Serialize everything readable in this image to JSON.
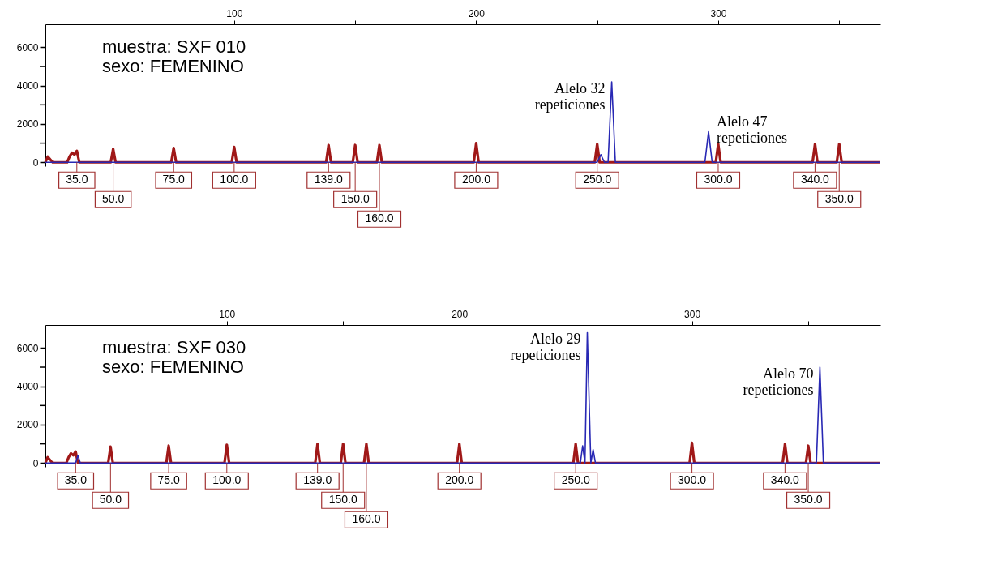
{
  "chart_data": [
    {
      "type": "line",
      "xlim": [
        22,
        367
      ],
      "xticks": [
        100,
        {
          "value": 150,
          "label": null
        },
        200,
        {
          "value": 250,
          "label": null
        },
        300,
        {
          "value": 350,
          "label": null
        }
      ],
      "ylim": [
        -200,
        7200
      ],
      "yticks": [
        0,
        {
          "value": 1000,
          "label": null
        },
        2000,
        {
          "value": 3000,
          "label": null
        },
        4000,
        {
          "value": 5000,
          "label": null
        },
        6000
      ],
      "grid": false,
      "series": [
        {
          "color": "#a01818",
          "x": [
            22,
            23,
            25,
            31,
            32,
            33,
            34,
            35,
            36,
            49,
            50,
            51,
            74,
            75,
            76,
            99,
            100,
            101,
            138,
            139,
            140,
            149,
            150,
            151,
            159,
            160,
            161,
            199,
            200,
            201,
            249,
            250,
            251,
            299,
            300,
            301,
            339,
            340,
            341,
            349,
            350,
            351,
            367
          ],
          "values": [
            0,
            300,
            0,
            0,
            300,
            500,
            400,
            600,
            0,
            0,
            700,
            0,
            0,
            750,
            0,
            0,
            800,
            0,
            0,
            900,
            0,
            0,
            900,
            0,
            0,
            900,
            0,
            0,
            1000,
            0,
            0,
            950,
            0,
            0,
            950,
            0,
            0,
            950,
            0,
            0,
            950,
            0,
            0
          ]
        },
        {
          "color": "#2828b4",
          "x": [
            22,
            250,
            251.5,
            253,
            254.5,
            256,
            257.5,
            294.5,
            296,
            297.5,
            367
          ],
          "values": [
            0,
            0,
            400,
            0,
            0,
            4200,
            0,
            0,
            1600,
            0,
            0
          ]
        }
      ],
      "annotations": [
        "muestra: SXF 010",
        "sexo: FEMENINO",
        {
          "text": "Alelo 32 repeticiones",
          "x": 256,
          "y": 4200
        },
        {
          "text": "Alelo 47 repeticiones",
          "x": 296,
          "y": 1600
        },
        {
          "text": "35.0",
          "x": 35,
          "y": 0
        },
        {
          "text": "50.0",
          "x": 50,
          "y": 0
        },
        {
          "text": "75.0",
          "x": 75,
          "y": 0
        },
        {
          "text": "100.0",
          "x": 100,
          "y": 0
        },
        {
          "text": "139.0",
          "x": 139,
          "y": 0
        },
        {
          "text": "150.0",
          "x": 150,
          "y": 0
        },
        {
          "text": "160.0",
          "x": 160,
          "y": 0
        },
        {
          "text": "200.0",
          "x": 200,
          "y": 0
        },
        {
          "text": "250.0",
          "x": 250,
          "y": 0
        },
        {
          "text": "300.0",
          "x": 300,
          "y": 0
        },
        {
          "text": "340.0",
          "x": 340,
          "y": 0
        },
        {
          "text": "350.0",
          "x": 350,
          "y": 0
        }
      ]
    },
    {
      "type": "line",
      "xlim": [
        22,
        381
      ],
      "xticks": [
        100,
        {
          "value": 150,
          "label": null
        },
        200,
        {
          "value": 250,
          "label": null
        },
        300,
        {
          "value": 350,
          "label": null
        }
      ],
      "ylim": [
        -200,
        7200
      ],
      "yticks": [
        0,
        {
          "value": 1000,
          "label": null
        },
        2000,
        {
          "value": 3000,
          "label": null
        },
        4000,
        {
          "value": 5000,
          "label": null
        },
        6000
      ],
      "grid": false,
      "series": [
        {
          "color": "#a01818",
          "x": [
            22,
            23,
            25,
            31,
            32,
            33,
            34,
            35,
            36,
            49,
            50,
            51,
            74,
            75,
            76,
            99,
            100,
            101,
            138,
            139,
            140,
            149,
            150,
            151,
            159,
            160,
            161,
            199,
            200,
            201,
            249,
            250,
            251,
            299,
            300,
            301,
            339,
            340,
            341,
            349,
            350,
            351,
            381
          ],
          "values": [
            0,
            300,
            0,
            0,
            300,
            500,
            400,
            600,
            0,
            0,
            850,
            0,
            0,
            900,
            0,
            0,
            950,
            0,
            0,
            1000,
            0,
            0,
            1000,
            0,
            0,
            1000,
            0,
            0,
            1000,
            0,
            0,
            1000,
            0,
            0,
            1050,
            0,
            0,
            1000,
            0,
            0,
            900,
            0,
            0
          ]
        },
        {
          "color": "#2828b4",
          "x": [
            22,
            35,
            36,
            37,
            252,
            253,
            254,
            255,
            256.5,
            257.5,
            258.5,
            353.5,
            355,
            356.5,
            381
          ],
          "values": [
            0,
            0,
            400,
            0,
            0,
            900,
            0,
            6800,
            0,
            700,
            0,
            0,
            5000,
            0,
            0
          ]
        }
      ],
      "annotations": [
        "muestra: SXF 030",
        "sexo: FEMENINO",
        {
          "text": "Alelo 29 repeticiones",
          "x": 255,
          "y": 6800
        },
        {
          "text": "Alelo 70 repeticiones",
          "x": 355,
          "y": 5000
        },
        {
          "text": "35.0",
          "x": 35,
          "y": 0
        },
        {
          "text": "50.0",
          "x": 50,
          "y": 0
        },
        {
          "text": "75.0",
          "x": 75,
          "y": 0
        },
        {
          "text": "100.0",
          "x": 100,
          "y": 0
        },
        {
          "text": "139.0",
          "x": 139,
          "y": 0
        },
        {
          "text": "150.0",
          "x": 150,
          "y": 0
        },
        {
          "text": "160.0",
          "x": 160,
          "y": 0
        },
        {
          "text": "200.0",
          "x": 200,
          "y": 0
        },
        {
          "text": "250.0",
          "x": 250,
          "y": 0
        },
        {
          "text": "300.0",
          "x": 300,
          "y": 0
        },
        {
          "text": "340.0",
          "x": 340,
          "y": 0
        },
        {
          "text": "350.0",
          "x": 350,
          "y": 0
        }
      ]
    }
  ]
}
